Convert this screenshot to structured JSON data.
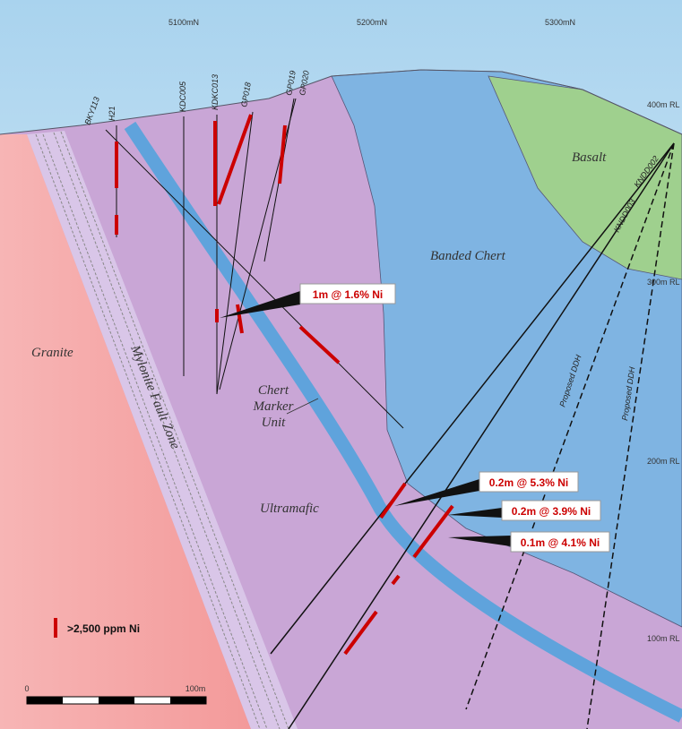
{
  "northings": [
    "5100mN",
    "5200mN",
    "5300mN"
  ],
  "levels": [
    "400m RL",
    "300m RL",
    "200m RL",
    "100m RL"
  ],
  "drill_holes": [
    "BKY113",
    "H21",
    "KDC005",
    "KDKC013",
    "GP018",
    "GP019",
    "GP020",
    "KNDD002",
    "KNDD003"
  ],
  "proposed": [
    "Proposed DDH",
    "Proposed DDH"
  ],
  "units": {
    "basalt": "Basalt",
    "banded_chert": "Banded Chert",
    "granite": "Granite",
    "mylonite": "Mylonite Fault Zone",
    "chert_marker": [
      "Chert",
      "Marker",
      "Unit"
    ],
    "ultramafic": "Ultramafic"
  },
  "intercepts": [
    "1m @ 1.6% Ni",
    "0.2m @ 5.3% Ni",
    "0.2m @ 3.9% Ni",
    "0.1m @ 4.1% Ni"
  ],
  "legend": ">2,500 ppm Ni",
  "scale": [
    "0",
    "100m"
  ]
}
